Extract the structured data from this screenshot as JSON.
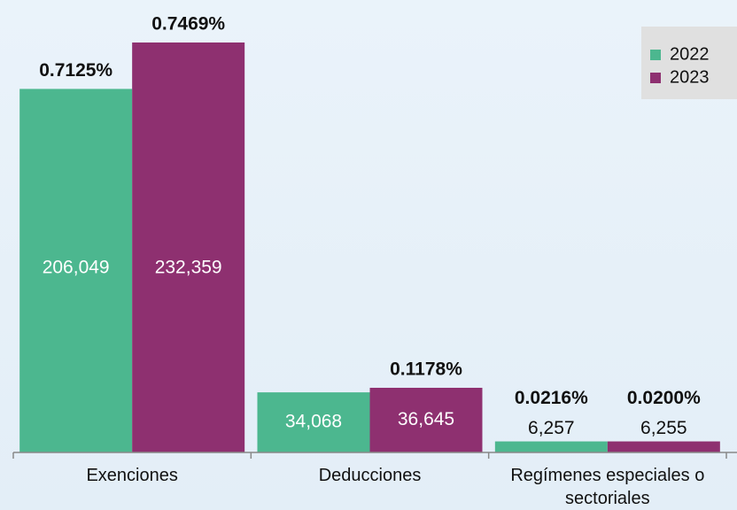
{
  "chart_data": {
    "type": "bar",
    "categories": [
      "Exenciones",
      "Deducciones",
      "Regímenes especiales o sectoriales"
    ],
    "series": [
      {
        "name": "2022",
        "color": "#4cb78f",
        "values": [
          206049,
          34068,
          6257
        ],
        "value_labels": [
          "206,049",
          "34,068",
          "6,257"
        ],
        "percent_labels": [
          "0.7125%",
          null,
          "0.0216%"
        ]
      },
      {
        "name": "2023",
        "color": "#8e3070",
        "values": [
          232359,
          36645,
          6255
        ],
        "value_labels": [
          "232,359",
          "36,645",
          "6,255"
        ],
        "percent_labels": [
          "0.7469%",
          "0.1178%",
          "0.0200%"
        ]
      }
    ],
    "legend": "upper right"
  }
}
